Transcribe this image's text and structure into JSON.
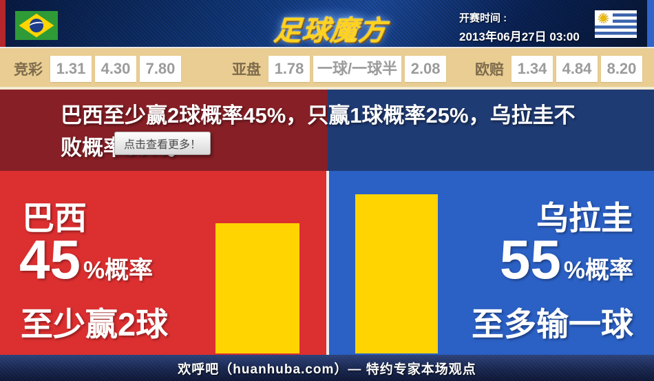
{
  "header": {
    "title": "足球魔方",
    "kickoff_label": "开赛时间 :",
    "kickoff_time": "2013年06月27日 03:00",
    "home_flag": "brazil",
    "away_flag": "uruguay"
  },
  "odds": {
    "jingcai": {
      "label": "竞彩",
      "values": [
        "1.31",
        "4.30",
        "7.80"
      ]
    },
    "yapan": {
      "label": "亚盘",
      "values": [
        "1.78",
        "一球/一球半",
        "2.08"
      ]
    },
    "oupei": {
      "label": "欧赔",
      "values": [
        "1.34",
        "4.84",
        "8.20"
      ]
    }
  },
  "headline": {
    "line1": "巴西至少赢2球概率45%，只赢1球概率25%，乌拉圭不",
    "line2": "败概率30%。",
    "full": "巴西至少赢2球概率45%，只赢1球概率25%，乌拉圭不败概率30%。"
  },
  "tooltip": "点击查看更多！",
  "panels": {
    "brazil": {
      "team": "巴西",
      "percent": "45",
      "suffix": "%概率",
      "outcome": "至少赢2球"
    },
    "uruguay": {
      "team": "乌拉圭",
      "percent": "55",
      "suffix": "%概率",
      "outcome": "至多输一球"
    }
  },
  "chart_data": {
    "type": "bar",
    "categories": [
      "巴西 至少赢2球",
      "乌拉圭 至多输一球"
    ],
    "values": [
      45,
      55
    ],
    "unit": "%概率",
    "bar_color": "#ffd400"
  },
  "footer": {
    "text": "欢呼吧（huanhuba.com）— 特约专家本场观点"
  },
  "colors": {
    "brazil_red": "#dc2f30",
    "uruguay_blue": "#2b60c4",
    "dark_red": "#871f26",
    "dark_blue": "#1f3b74",
    "bar_yellow": "#ffd400",
    "odds_bar_tan": "#e9cd92",
    "header_navy": "#0c2252",
    "left_accent": "#b3262b",
    "right_accent": "#2f64c8"
  }
}
